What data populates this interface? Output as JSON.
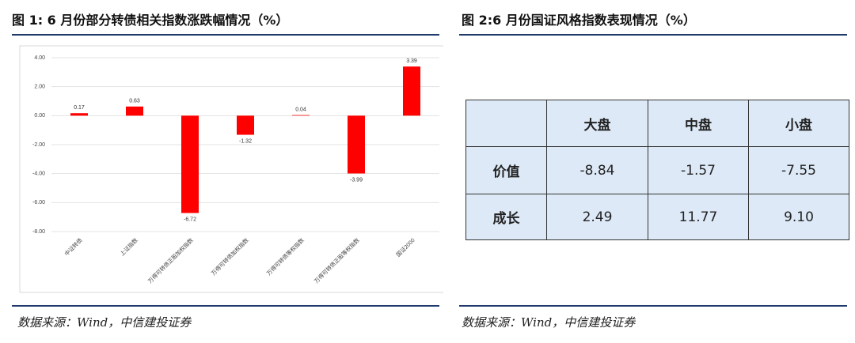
{
  "left": {
    "title": "图 1: 6 月份部分转债相关指数涨跌幅情况（%）",
    "source": "数据来源：Wind，中信建投证券"
  },
  "chart_data": {
    "type": "bar",
    "categories": [
      "中证转债",
      "上证指数",
      "万得可转债正股加权指数",
      "万得可转债加权指数",
      "万得可转债等权指数",
      "万得可转债正股等权指数",
      "国证2000"
    ],
    "values": [
      0.17,
      0.63,
      -6.72,
      -1.32,
      0.04,
      -3.99,
      3.39
    ],
    "color": "#ff0000",
    "ylim": [
      -8,
      4
    ],
    "yticks": [
      {
        "value": -8,
        "label": "-8.00"
      },
      {
        "value": -6,
        "label": "-6.00"
      },
      {
        "value": -4,
        "label": "-4.00"
      },
      {
        "value": -2,
        "label": "-2.00"
      },
      {
        "value": 0,
        "label": "0.00"
      },
      {
        "value": 2,
        "label": "2.00"
      },
      {
        "value": 4,
        "label": "4.00"
      }
    ],
    "grid": true
  },
  "right": {
    "title": "图 2:6 月份国证风格指数表现情况（%）",
    "table": {
      "header": [
        "大盘",
        "中盘",
        "小盘"
      ],
      "rows": [
        [
          "价值",
          "-8.84",
          "-1.57",
          "-7.55"
        ],
        [
          "成长",
          "2.49",
          "11.77",
          "9.10"
        ]
      ]
    },
    "source": "数据来源：Wind，中信建投证券"
  }
}
